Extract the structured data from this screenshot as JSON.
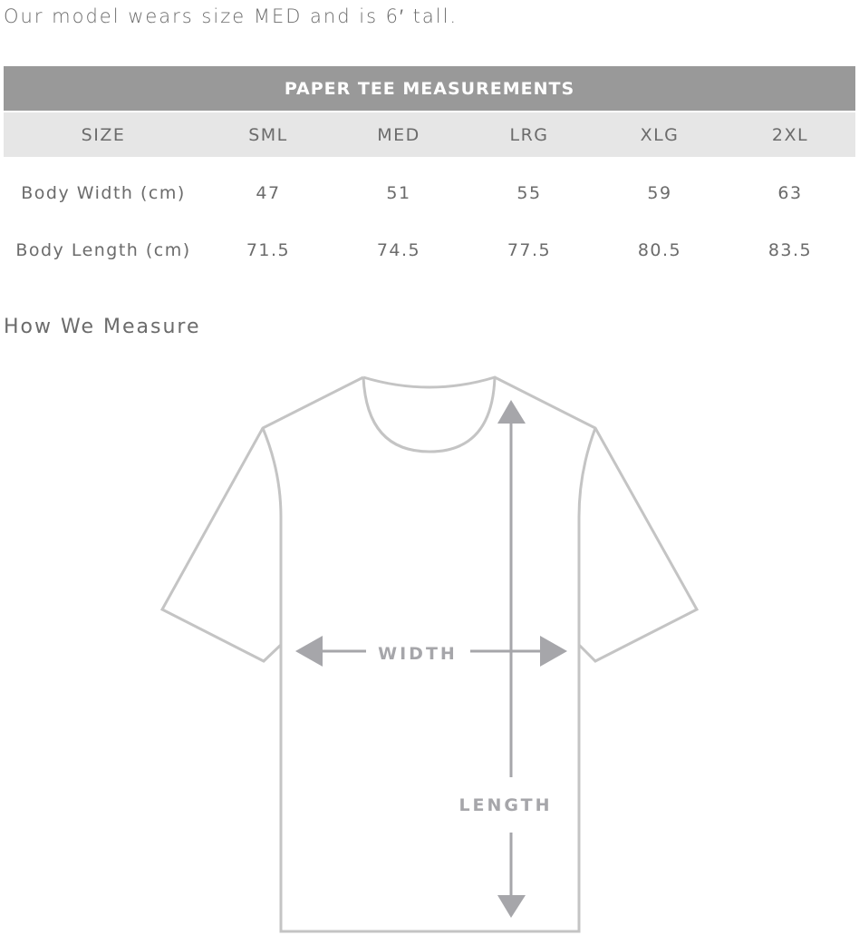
{
  "note": "Our model wears size MED and is 6′ tall.",
  "table": {
    "title": "PAPER TEE MEASUREMENTS",
    "headers": [
      "SIZE",
      "SML",
      "MED",
      "LRG",
      "XLG",
      "2XL"
    ],
    "rows": [
      [
        "Body Width (cm)",
        "47",
        "51",
        "55",
        "59",
        "63"
      ],
      [
        "Body Length (cm)",
        "71.5",
        "74.5",
        "77.5",
        "80.5",
        "83.5"
      ]
    ]
  },
  "how_title": "How We Measure",
  "diagram": {
    "width_label": "WIDTH",
    "length_label": "LENGTH",
    "outline_color": "#c4c4c4",
    "arrow_color": "#a6a6aa"
  }
}
